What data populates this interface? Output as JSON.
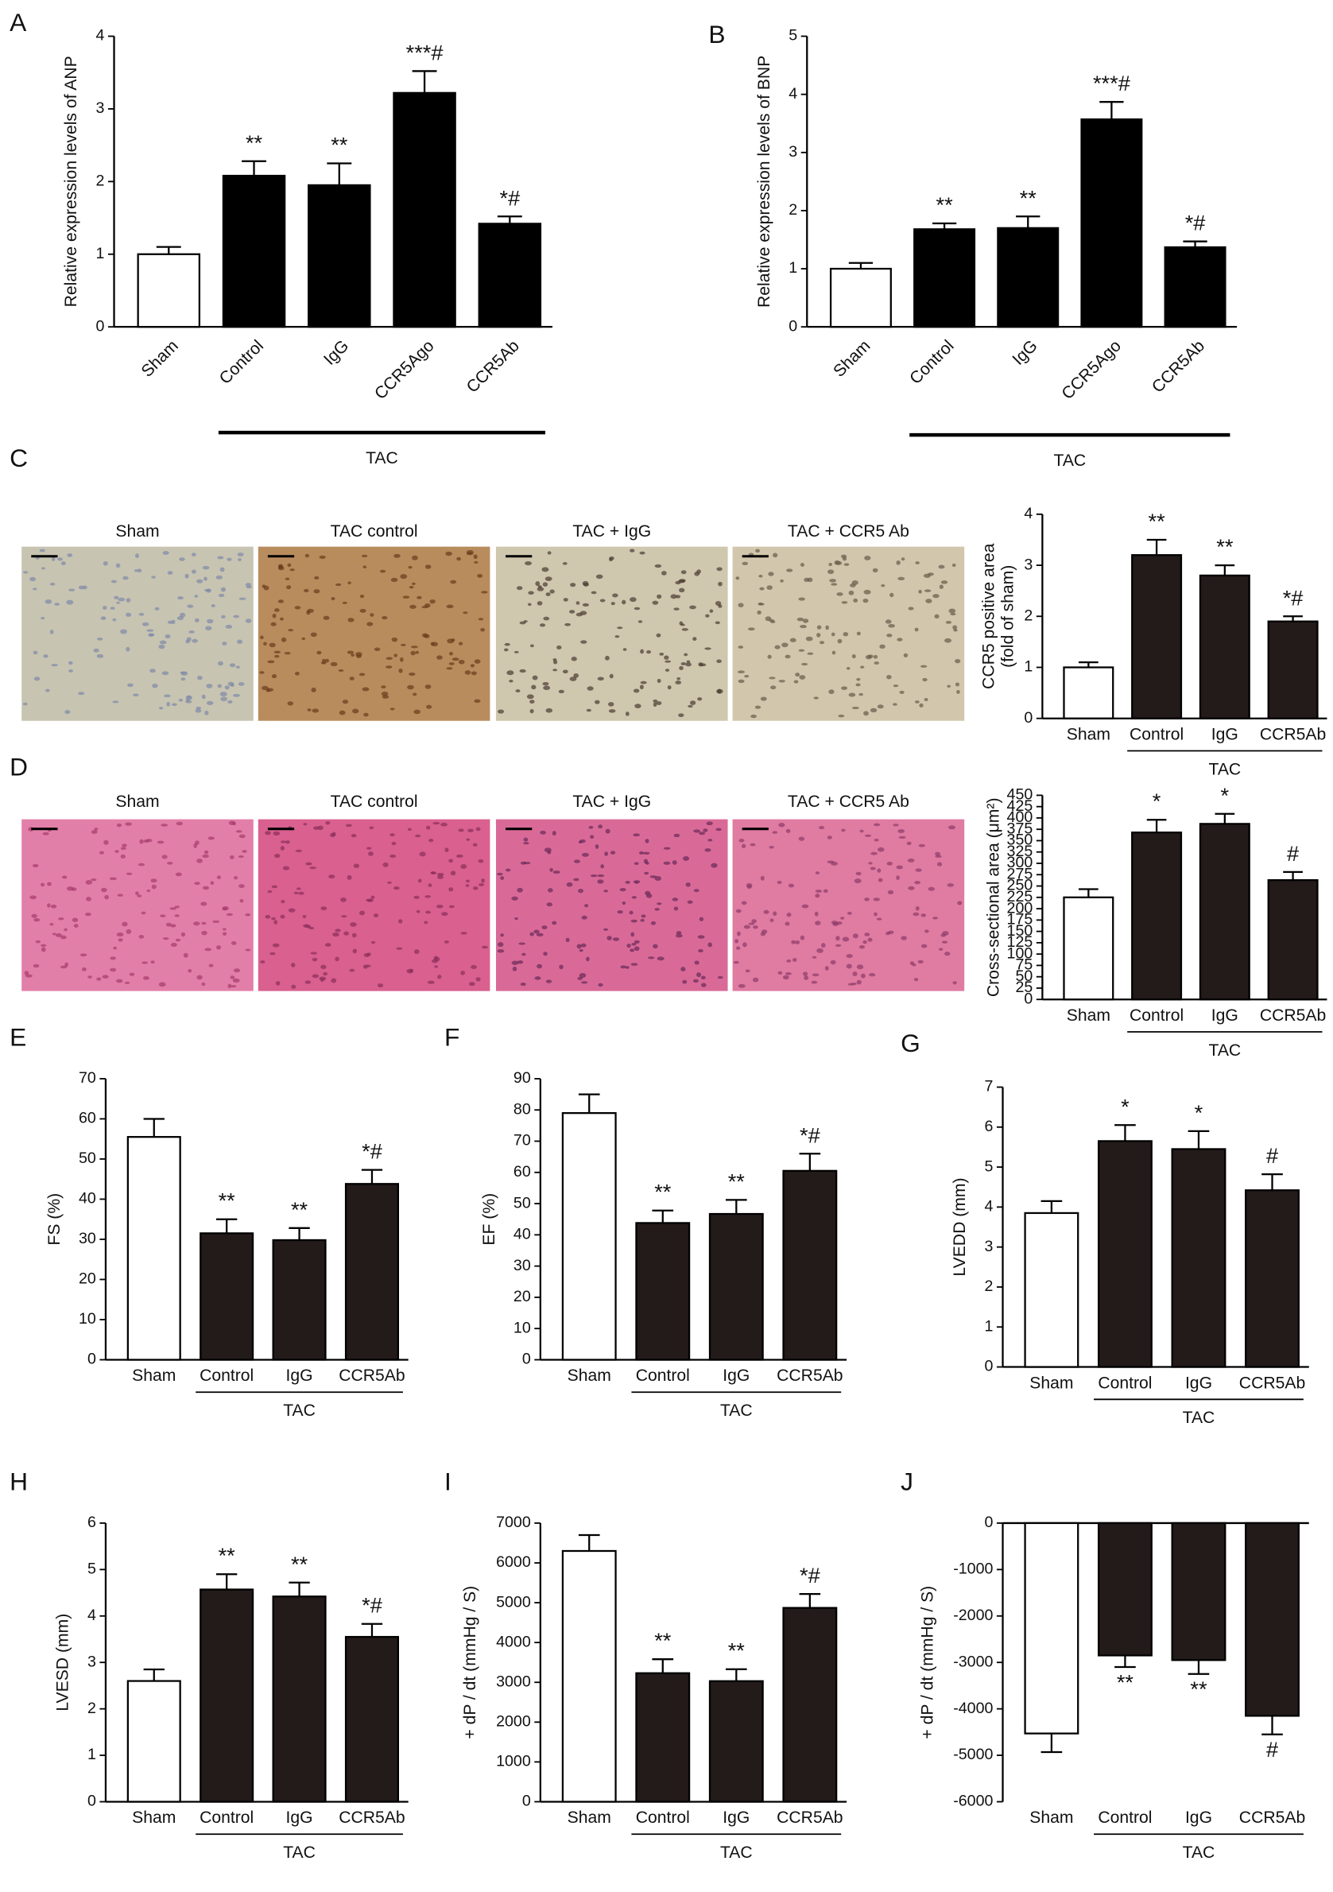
{
  "chart_data": [
    {
      "type": "bar",
      "label": "A",
      "ylabel": "Relative expression levels of ANP",
      "categories": [
        "Sham",
        "Control",
        "IgG",
        "CCR5Ago",
        "CCR5Ab"
      ],
      "values": [
        1.0,
        2.08,
        1.95,
        3.22,
        1.42
      ],
      "errors": [
        0.1,
        0.2,
        0.3,
        0.3,
        0.1
      ],
      "annotations": [
        null,
        "**",
        "**",
        "***#",
        "*#"
      ],
      "colors": [
        "#ffffff",
        "#000000",
        "#000000",
        "#000000",
        "#000000"
      ],
      "ylim": [
        0,
        4
      ],
      "yticks": [
        0,
        1,
        2,
        3,
        4
      ],
      "group_label": "TAC"
    },
    {
      "type": "bar",
      "label": "B",
      "ylabel": "Relative expression levels of BNP",
      "categories": [
        "Sham",
        "Control",
        "IgG",
        "CCR5Ago",
        "CCR5Ab"
      ],
      "values": [
        1.0,
        1.68,
        1.7,
        3.57,
        1.37
      ],
      "errors": [
        0.1,
        0.1,
        0.2,
        0.3,
        0.1
      ],
      "annotations": [
        null,
        "**",
        "**",
        "***#",
        "*#"
      ],
      "colors": [
        "#ffffff",
        "#000000",
        "#000000",
        "#000000",
        "#000000"
      ],
      "ylim": [
        0,
        5
      ],
      "yticks": [
        0,
        1,
        2,
        3,
        4,
        5
      ],
      "group_label": "TAC"
    },
    {
      "type": "bar",
      "ylabel": [
        "CCR5 positive area",
        "(fold of sham)"
      ],
      "categories": [
        "Sham",
        "Control",
        "IgG",
        "CCR5Ab"
      ],
      "values": [
        1.0,
        3.2,
        2.8,
        1.9
      ],
      "errors": [
        0.1,
        0.3,
        0.2,
        0.1
      ],
      "annotations": [
        null,
        "**",
        "**",
        "*#"
      ],
      "colors": [
        "#ffffff",
        "#231a1a",
        "#231a1a",
        "#231a1a"
      ],
      "ylim": [
        0,
        4
      ],
      "yticks": [
        0,
        1,
        2,
        3,
        4
      ],
      "group_label": "TAC"
    },
    {
      "type": "bar",
      "ylabel": "Cross-sectional area (μm²)",
      "categories": [
        "Sham",
        "Control",
        "IgG",
        "CCR5Ab"
      ],
      "values": [
        225,
        368,
        387,
        263
      ],
      "errors": [
        18,
        28,
        22,
        18
      ],
      "annotations": [
        null,
        "*",
        "*",
        "#"
      ],
      "colors": [
        "#ffffff",
        "#231a1a",
        "#231a1a",
        "#231a1a"
      ],
      "ylim": [
        0,
        450
      ],
      "yticks": [
        0,
        25,
        50,
        75,
        100,
        125,
        150,
        175,
        200,
        225,
        250,
        275,
        300,
        325,
        350,
        375,
        400,
        425,
        450
      ],
      "group_label": "TAC"
    },
    {
      "type": "bar",
      "label": "E",
      "ylabel": "FS (%)",
      "categories": [
        "Sham",
        "Control",
        "IgG",
        "CCR5Ab"
      ],
      "values": [
        55.5,
        31.5,
        29.8,
        43.8
      ],
      "errors": [
        4.5,
        3.5,
        3,
        3.5
      ],
      "annotations": [
        null,
        "**",
        "**",
        "*#"
      ],
      "colors": [
        "#ffffff",
        "#231a1a",
        "#231a1a",
        "#231a1a"
      ],
      "ylim": [
        0,
        70
      ],
      "yticks": [
        0,
        10,
        20,
        30,
        40,
        50,
        60,
        70
      ],
      "group_label": "TAC"
    },
    {
      "type": "bar",
      "label": "F",
      "ylabel": "EF (%)",
      "categories": [
        "Sham",
        "Control",
        "IgG",
        "CCR5Ab"
      ],
      "values": [
        79,
        43.8,
        46.7,
        60.5
      ],
      "errors": [
        6,
        4,
        4.5,
        5.5
      ],
      "annotations": [
        null,
        "**",
        "**",
        "*#"
      ],
      "colors": [
        "#ffffff",
        "#231a1a",
        "#231a1a",
        "#231a1a"
      ],
      "ylim": [
        0,
        90
      ],
      "yticks": [
        0,
        10,
        20,
        30,
        40,
        50,
        60,
        70,
        80,
        90
      ],
      "group_label": "TAC"
    },
    {
      "type": "bar",
      "label": "G",
      "ylabel": "LVEDD (mm)",
      "categories": [
        "Sham",
        "Control",
        "IgG",
        "CCR5Ab"
      ],
      "values": [
        3.85,
        5.65,
        5.45,
        4.42
      ],
      "errors": [
        0.3,
        0.4,
        0.45,
        0.4
      ],
      "annotations": [
        null,
        "*",
        "*",
        "#"
      ],
      "colors": [
        "#ffffff",
        "#231a1a",
        "#231a1a",
        "#231a1a"
      ],
      "ylim": [
        0,
        7
      ],
      "yticks": [
        0,
        1,
        2,
        3,
        4,
        5,
        6,
        7
      ],
      "group_label": "TAC"
    },
    {
      "type": "bar",
      "label": "H",
      "ylabel": "LVESD (mm)",
      "categories": [
        "Sham",
        "Control",
        "IgG",
        "CCR5Ab"
      ],
      "values": [
        2.6,
        4.57,
        4.42,
        3.55
      ],
      "errors": [
        0.25,
        0.33,
        0.3,
        0.28
      ],
      "annotations": [
        null,
        "**",
        "**",
        "*#"
      ],
      "colors": [
        "#ffffff",
        "#231a1a",
        "#231a1a",
        "#231a1a"
      ],
      "ylim": [
        0,
        6
      ],
      "yticks": [
        0,
        1,
        2,
        3,
        4,
        5,
        6
      ],
      "group_label": "TAC"
    },
    {
      "type": "bar",
      "label": "I",
      "ylabel": "+ dP / dt (mmHg / S)",
      "categories": [
        "Sham",
        "Control",
        "IgG",
        "CCR5Ab"
      ],
      "values": [
        6300,
        3230,
        3030,
        4870
      ],
      "errors": [
        400,
        350,
        300,
        350
      ],
      "annotations": [
        null,
        "**",
        "**",
        "*#"
      ],
      "colors": [
        "#ffffff",
        "#231a1a",
        "#231a1a",
        "#231a1a"
      ],
      "ylim": [
        0,
        7000
      ],
      "yticks": [
        0,
        1000,
        2000,
        3000,
        4000,
        5000,
        6000,
        7000
      ],
      "group_label": "TAC"
    },
    {
      "type": "bar",
      "label": "J",
      "ylabel": "+ dP / dt (mmHg / S)",
      "categories": [
        "Sham",
        "Control",
        "IgG",
        "CCR5Ab"
      ],
      "values": [
        -4530,
        -2850,
        -2950,
        -4150
      ],
      "errors": [
        400,
        250,
        300,
        400
      ],
      "annotations": [
        null,
        "**",
        "**",
        "#"
      ],
      "colors": [
        "#ffffff",
        "#231a1a",
        "#231a1a",
        "#231a1a"
      ],
      "ylim": [
        -6000,
        0
      ],
      "yticks": [
        -6000,
        -5000,
        -4000,
        -3000,
        -2000,
        -1000,
        0
      ],
      "group_label": "TAC"
    }
  ],
  "micrographs": [
    {
      "label": "C",
      "titles": [
        "Sham",
        "TAC control",
        "TAC + IgG",
        "TAC + CCR5 Ab"
      ]
    },
    {
      "label": "D",
      "titles": [
        "Sham",
        "TAC control",
        "TAC + IgG",
        "TAC + CCR5 Ab"
      ]
    }
  ]
}
